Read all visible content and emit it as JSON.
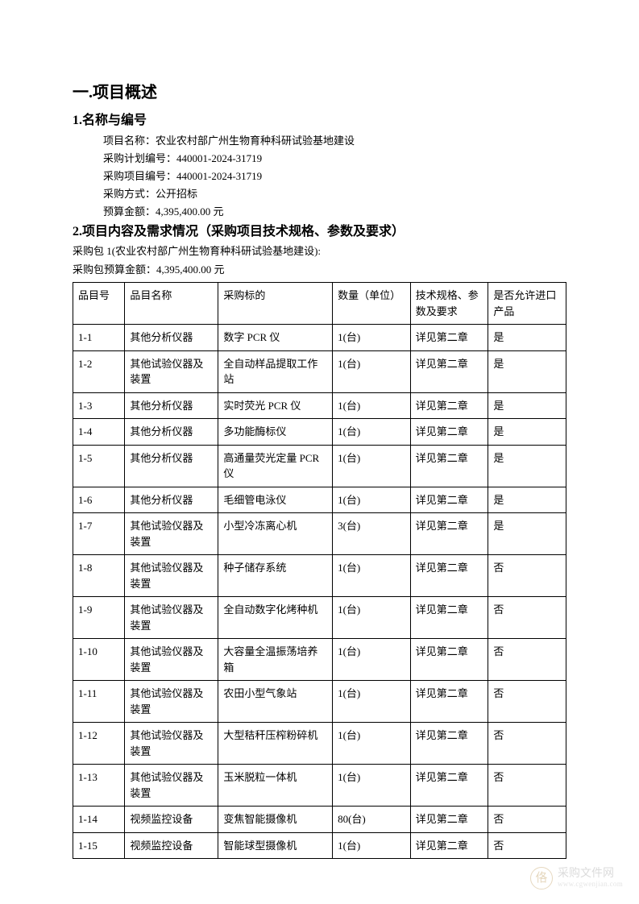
{
  "heading1": "一.项目概述",
  "section1": {
    "title": "1.名称与编号",
    "lines": [
      {
        "label": "项目名称：",
        "value": "农业农村部广州生物育种科研试验基地建设"
      },
      {
        "label": "采购计划编号：",
        "value": "440001-2024-31719"
      },
      {
        "label": "采购项目编号：",
        "value": "440001-2024-31719"
      },
      {
        "label": "采购方式：",
        "value": "公开招标"
      },
      {
        "label": "预算金额：",
        "value": "4,395,400.00 元"
      }
    ]
  },
  "section2": {
    "title": "2.项目内容及需求情况（采购项目技术规格、参数及要求）",
    "pkg_line": "采购包 1(农业农村部广州生物育种科研试验基地建设):",
    "budget_line": "采购包预算金额：4,395,400.00 元"
  },
  "table": {
    "columns": [
      "品目号",
      "品目名称",
      "采购标的",
      "数量（单位）",
      "技术规格、参数及要求",
      "是否允许进口产品"
    ],
    "rows": [
      [
        "1-1",
        "其他分析仪器",
        "数字 PCR 仪",
        "1(台)",
        "详见第二章",
        "是"
      ],
      [
        "1-2",
        "其他试验仪器及装置",
        "全自动样品提取工作站",
        "1(台)",
        "详见第二章",
        "是"
      ],
      [
        "1-3",
        "其他分析仪器",
        "实时荧光 PCR 仪",
        "1(台)",
        "详见第二章",
        "是"
      ],
      [
        "1-4",
        "其他分析仪器",
        "多功能酶标仪",
        "1(台)",
        "详见第二章",
        "是"
      ],
      [
        "1-5",
        "其他分析仪器",
        "高通量荧光定量 PCR 仪",
        "1(台)",
        "详见第二章",
        "是"
      ],
      [
        "1-6",
        "其他分析仪器",
        "毛细管电泳仪",
        "1(台)",
        "详见第二章",
        "是"
      ],
      [
        "1-7",
        "其他试验仪器及装置",
        "小型冷冻离心机",
        "3(台)",
        "详见第二章",
        "是"
      ],
      [
        "1-8",
        "其他试验仪器及装置",
        "种子储存系统",
        "1(台)",
        "详见第二章",
        "否"
      ],
      [
        "1-9",
        "其他试验仪器及装置",
        "全自动数字化烤种机",
        "1(台)",
        "详见第二章",
        "否"
      ],
      [
        "1-10",
        "其他试验仪器及装置",
        "大容量全温振荡培养箱",
        "1(台)",
        "详见第二章",
        "否"
      ],
      [
        "1-11",
        "其他试验仪器及装置",
        "农田小型气象站",
        "1(台)",
        "详见第二章",
        "否"
      ],
      [
        "1-12",
        "其他试验仪器及装置",
        "大型秸秆压榨粉碎机",
        "1(台)",
        "详见第二章",
        "否"
      ],
      [
        "1-13",
        "其他试验仪器及装置",
        "玉米脱粒一体机",
        "1(台)",
        "详见第二章",
        "否"
      ],
      [
        "1-14",
        "视频监控设备",
        "变焦智能摄像机",
        "80(台)",
        "详见第二章",
        "否"
      ],
      [
        "1-15",
        "视频监控设备",
        "智能球型摄像机",
        "1(台)",
        "详见第二章",
        "否"
      ]
    ]
  },
  "watermark": {
    "icon_char": "佫",
    "line1": "采购文件网",
    "line2": "www.cgwenjian.com"
  },
  "colors": {
    "text": "#000000",
    "border": "#000000",
    "wm_icon": "#d2b98c",
    "wm_text": "#bfbfbf"
  }
}
